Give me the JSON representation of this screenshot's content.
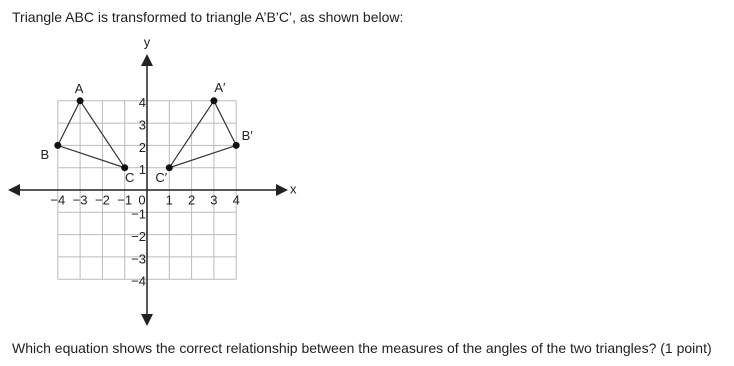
{
  "header": {
    "text": "Triangle ABC is transformed to triangle A’B’C’, as shown below:"
  },
  "figure": {
    "x_axis_label": "x",
    "y_axis_label": "y",
    "range": [
      -4,
      4
    ],
    "xticks": [
      {
        "value": -4,
        "label": "−4"
      },
      {
        "value": -3,
        "label": "−3"
      },
      {
        "value": -2,
        "label": "−2"
      },
      {
        "value": -1,
        "label": "−1"
      },
      0,
      1,
      2,
      3,
      4
    ],
    "yticks": [
      {
        "value": -4,
        "label": "−4"
      },
      {
        "value": -3,
        "label": "−3"
      },
      {
        "value": -2,
        "label": "−2"
      },
      {
        "value": -1,
        "label": "−1"
      },
      1,
      2,
      3,
      4
    ],
    "triangles": [
      {
        "points": [
          {
            "label": "A",
            "x": -3,
            "y": 4
          },
          {
            "label": "B",
            "x": -4,
            "y": 2
          },
          {
            "label": "C",
            "x": -1,
            "y": 1
          }
        ]
      },
      {
        "points": [
          {
            "label": "A′",
            "x": 3,
            "y": 4
          },
          {
            "label": "B′",
            "x": 4,
            "y": 2
          },
          {
            "label": "C′",
            "x": 1,
            "y": 1
          }
        ]
      }
    ]
  },
  "question": {
    "text": "Which equation shows the correct relationship between the measures of the angles of the two triangles? (1 point)"
  }
}
